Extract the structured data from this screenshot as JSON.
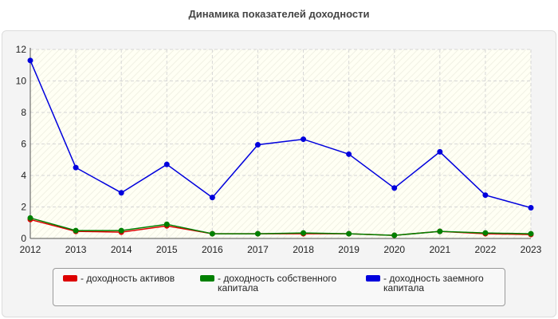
{
  "chart_data": {
    "type": "line",
    "title": "Динамика показателей доходности",
    "xlabel": "",
    "ylabel": "",
    "categories": [
      "2012",
      "2013",
      "2014",
      "2015",
      "2016",
      "2017",
      "2018",
      "2019",
      "2020",
      "2021",
      "2022",
      "2023"
    ],
    "ylim": [
      0,
      12
    ],
    "yticks": [
      "0",
      "2",
      "4",
      "6",
      "8",
      "10",
      "12"
    ],
    "grid": true,
    "legend_position": "bottom",
    "series": [
      {
        "name": "- доходность активов",
        "color": "#dd0000",
        "values": [
          1.2,
          0.45,
          0.4,
          0.8,
          0.3,
          0.3,
          0.3,
          0.3,
          0.2,
          0.45,
          0.3,
          0.25
        ]
      },
      {
        "name": "- доходность собственного капитала",
        "color": "#008000",
        "values": [
          1.3,
          0.5,
          0.5,
          0.9,
          0.3,
          0.3,
          0.35,
          0.3,
          0.2,
          0.45,
          0.35,
          0.3
        ]
      },
      {
        "name": "- доходность заемного капитала",
        "color": "#0000dd",
        "values": [
          11.3,
          4.5,
          2.9,
          4.7,
          2.6,
          5.95,
          6.3,
          5.35,
          3.2,
          5.5,
          2.75,
          1.95
        ]
      }
    ]
  }
}
